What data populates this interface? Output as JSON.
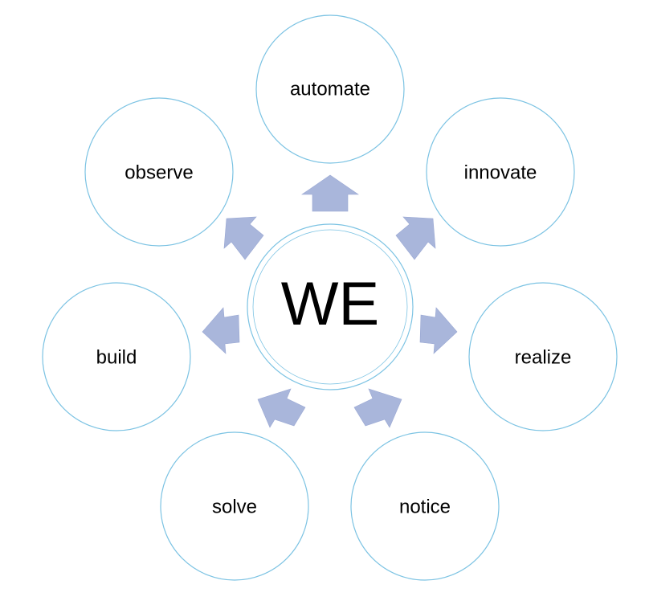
{
  "center": {
    "label": "WE"
  },
  "nodes": [
    {
      "id": "automate",
      "label": "automate"
    },
    {
      "id": "innovate",
      "label": "innovate"
    },
    {
      "id": "realize",
      "label": "realize"
    },
    {
      "id": "notice",
      "label": "notice"
    },
    {
      "id": "solve",
      "label": "solve"
    },
    {
      "id": "build",
      "label": "build"
    },
    {
      "id": "observe",
      "label": "observe"
    }
  ],
  "colors": {
    "circle_stroke": "#7cc3e3",
    "arrow_fill": "#a9b6db"
  }
}
